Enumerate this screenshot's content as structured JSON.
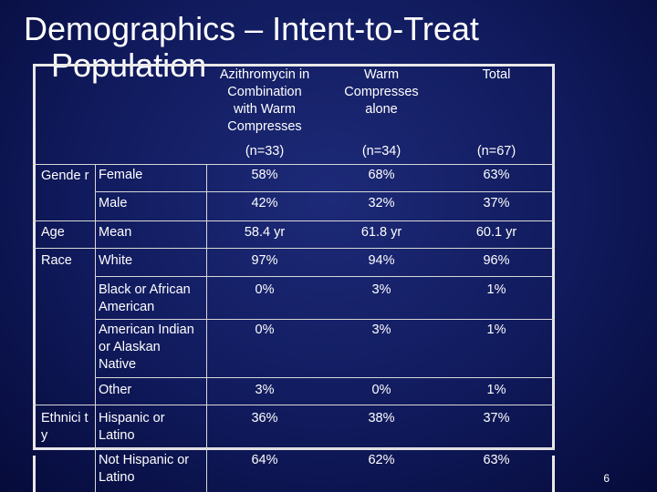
{
  "title": {
    "line1": "Demographics – Intent-to-Treat",
    "line2": "Population"
  },
  "headers": {
    "col1": [
      "Azithromycin in",
      "Combination",
      "with Warm",
      "Compresses"
    ],
    "col2": [
      "Warm",
      "Compresses",
      "alone"
    ],
    "col3": [
      "Total"
    ],
    "n1": "(n=33)",
    "n2": "(n=34)",
    "n3": "(n=67)"
  },
  "rows": [
    {
      "group": "Gende r",
      "label": "Female",
      "v1": "58%",
      "v2": "68%",
      "v3": "63%"
    },
    {
      "group": "",
      "label": "Male",
      "v1": "42%",
      "v2": "32%",
      "v3": "37%"
    },
    {
      "group": "Age",
      "label": "Mean",
      "v1": "58.4 yr",
      "v2": "61.8 yr",
      "v3": "60.1 yr"
    },
    {
      "group": "Race",
      "label": "White",
      "v1": "97%",
      "v2": "94%",
      "v3": "96%"
    },
    {
      "group": "",
      "label": "Black or African American",
      "v1": "0%",
      "v2": "3%",
      "v3": "1%"
    },
    {
      "group": "",
      "label": "American Indian or Alaskan Native",
      "v1": "0%",
      "v2": "3%",
      "v3": "1%"
    },
    {
      "group": "",
      "label": "Other",
      "v1": "3%",
      "v2": "0%",
      "v3": "1%"
    },
    {
      "group": "Ethnici ty",
      "label": "Hispanic or Latino",
      "v1": "36%",
      "v2": "38%",
      "v3": "37%"
    },
    {
      "group": "",
      "label": "Not Hispanic or Latino",
      "v1": "64%",
      "v2": "62%",
      "v3": "63%"
    }
  ],
  "page_number": "6"
}
